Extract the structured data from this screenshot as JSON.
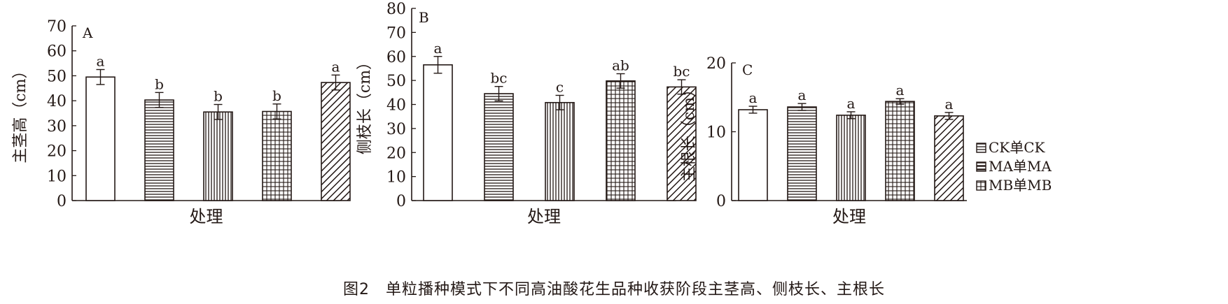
{
  "figure_caption": "图2　单粒播种模式下不同高油酸花生品种收获阶段主茎高、侧枝长、主根长",
  "legend": [
    {
      "key": "ck",
      "label": "CK单CK",
      "pattern": "hlines"
    },
    {
      "key": "ma",
      "label": "MA单MA",
      "pattern": "thick-hlines"
    },
    {
      "key": "mb",
      "label": "MB单MB",
      "pattern": "grid"
    }
  ],
  "chart_data": [
    {
      "panel": "A",
      "type": "bar",
      "xlabel": "处理",
      "ylabel": "主茎高（cm）",
      "ylim": [
        0,
        70
      ],
      "yticks": [
        0,
        10,
        20,
        30,
        40,
        50,
        60,
        70
      ],
      "bars": [
        {
          "value": 49.5,
          "error": 3.0,
          "sig": "a",
          "pattern": "white"
        },
        {
          "value": 40.3,
          "error": 3.0,
          "sig": "b",
          "pattern": "hlines"
        },
        {
          "value": 35.5,
          "error": 3.0,
          "sig": "b",
          "pattern": "vlines"
        },
        {
          "value": 35.7,
          "error": 3.0,
          "sig": "b",
          "pattern": "grid"
        },
        {
          "value": 47.3,
          "error": 3.0,
          "sig": "a",
          "pattern": "diag"
        }
      ]
    },
    {
      "panel": "B",
      "type": "bar",
      "xlabel": "处理",
      "ylabel": "侧枝长（cm）",
      "ylim": [
        0,
        80
      ],
      "yticks": [
        0,
        10,
        20,
        30,
        40,
        50,
        60,
        70,
        80
      ],
      "bars": [
        {
          "value": 56.5,
          "error": 3.5,
          "sig": "a",
          "pattern": "white"
        },
        {
          "value": 44.5,
          "error": 3.0,
          "sig": "bc",
          "pattern": "hlines"
        },
        {
          "value": 40.8,
          "error": 3.0,
          "sig": "c",
          "pattern": "vlines"
        },
        {
          "value": 49.8,
          "error": 3.0,
          "sig": "ab",
          "pattern": "grid"
        },
        {
          "value": 47.3,
          "error": 3.0,
          "sig": "bc",
          "pattern": "diag"
        }
      ]
    },
    {
      "panel": "C",
      "type": "bar",
      "xlabel": "处理",
      "ylabel": "主根长（cm）",
      "ylim": [
        0,
        20
      ],
      "yticks": [
        0,
        10,
        20
      ],
      "bars": [
        {
          "value": 13.2,
          "error": 0.5,
          "sig": "a",
          "pattern": "white"
        },
        {
          "value": 13.6,
          "error": 0.5,
          "sig": "a",
          "pattern": "hlines"
        },
        {
          "value": 12.4,
          "error": 0.5,
          "sig": "a",
          "pattern": "vlines"
        },
        {
          "value": 14.4,
          "error": 0.4,
          "sig": "a",
          "pattern": "grid"
        },
        {
          "value": 12.3,
          "error": 0.5,
          "sig": "a",
          "pattern": "diag"
        }
      ]
    }
  ]
}
